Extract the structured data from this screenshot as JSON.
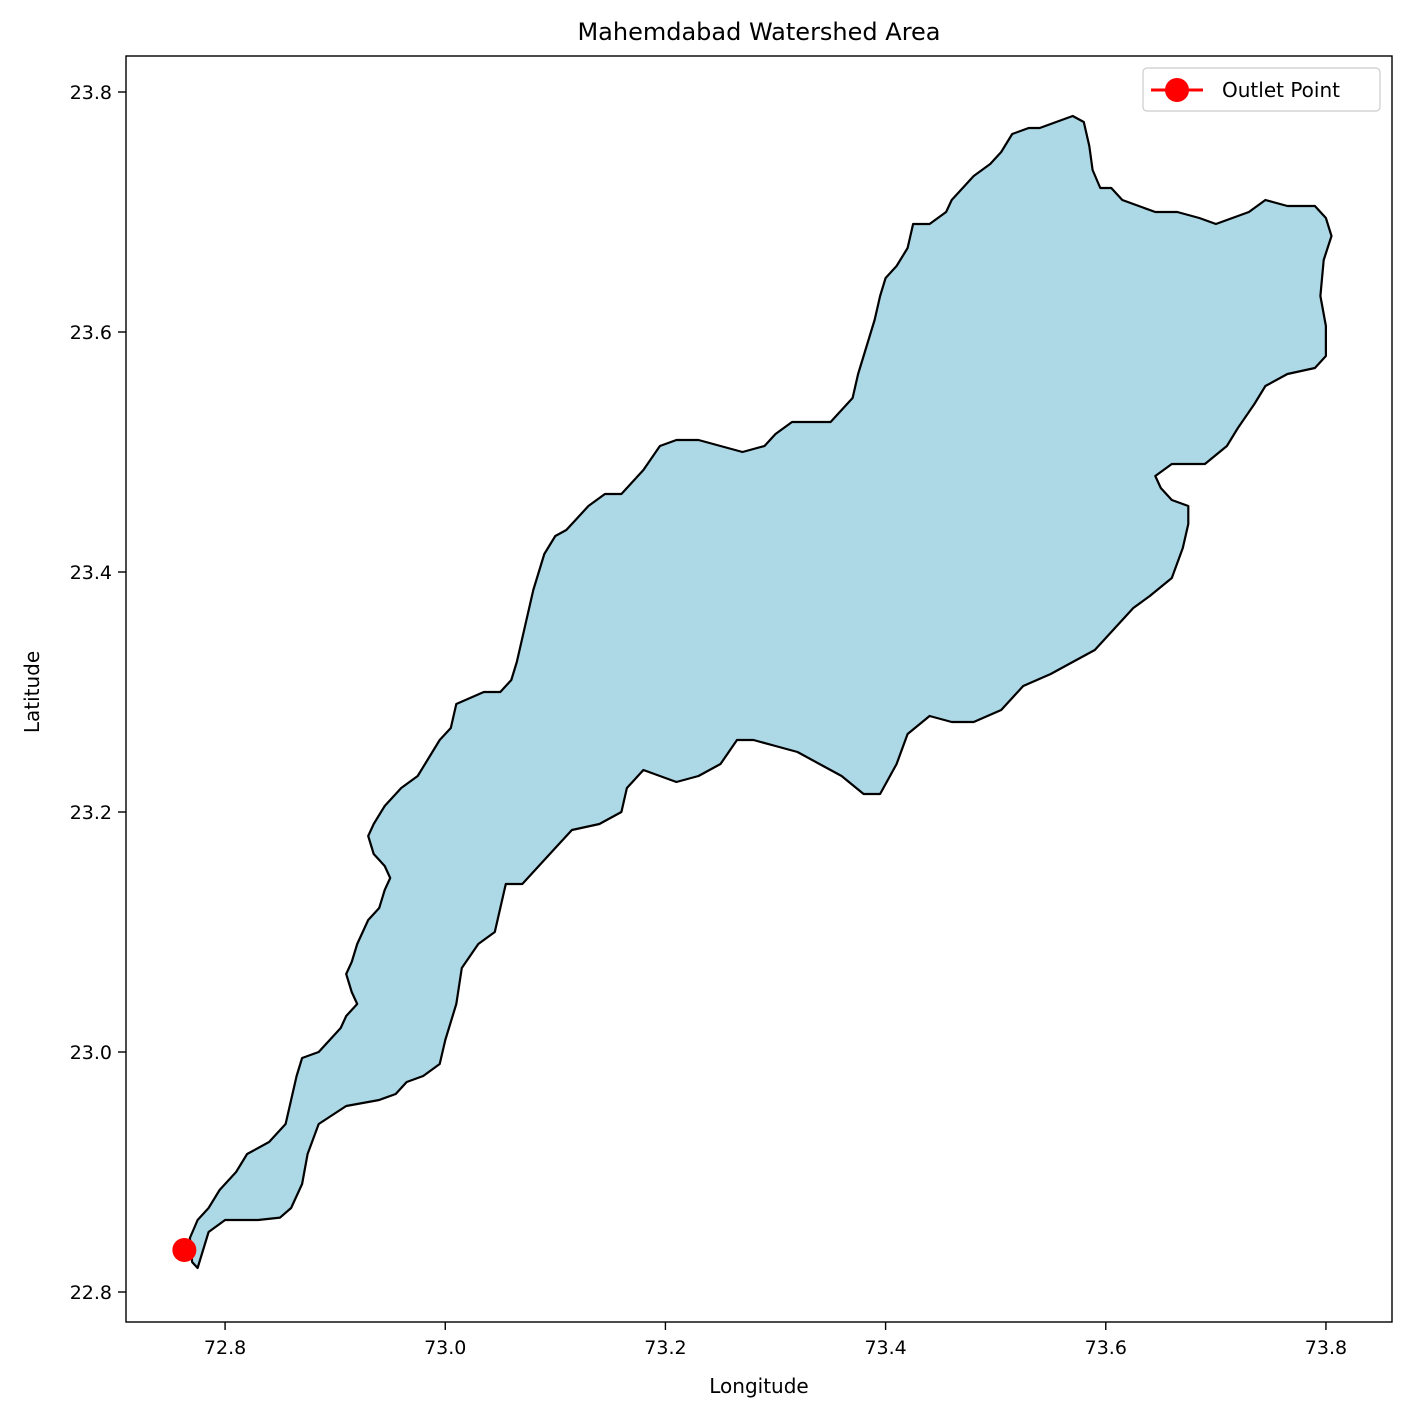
{
  "chart_data": {
    "type": "map",
    "title": "Mahemdabad Watershed Area",
    "xlabel": "Longitude",
    "ylabel": "Latitude",
    "xlim": [
      72.71,
      73.86
    ],
    "ylim": [
      22.775,
      23.83
    ],
    "xticks": [
      72.8,
      73.0,
      73.2,
      73.4,
      73.6,
      73.8
    ],
    "xtick_labels": [
      "72.8",
      "73.0",
      "73.2",
      "73.4",
      "73.6",
      "73.8"
    ],
    "yticks": [
      22.8,
      23.0,
      23.2,
      23.4,
      23.6,
      23.8
    ],
    "ytick_labels": [
      "22.8",
      "23.0",
      "23.2",
      "23.4",
      "23.6",
      "23.8"
    ],
    "grid": false,
    "legend": {
      "position": "top-right",
      "entries": [
        {
          "label": "Outlet Point",
          "color": "#ff0000",
          "marker": "circle"
        }
      ]
    },
    "watershed": {
      "fill": "#add8e6",
      "edge": "#000000",
      "boundary": [
        [
          72.775,
          22.82
        ],
        [
          72.785,
          22.85
        ],
        [
          72.8,
          22.86
        ],
        [
          72.83,
          22.86
        ],
        [
          72.85,
          22.862
        ],
        [
          72.86,
          22.87
        ],
        [
          72.87,
          22.89
        ],
        [
          72.875,
          22.915
        ],
        [
          72.885,
          22.94
        ],
        [
          72.91,
          22.955
        ],
        [
          72.94,
          22.96
        ],
        [
          72.955,
          22.965
        ],
        [
          72.965,
          22.975
        ],
        [
          72.98,
          22.98
        ],
        [
          72.995,
          22.99
        ],
        [
          73.0,
          23.01
        ],
        [
          73.01,
          23.04
        ],
        [
          73.015,
          23.07
        ],
        [
          73.03,
          23.09
        ],
        [
          73.045,
          23.1
        ],
        [
          73.05,
          23.12
        ],
        [
          73.055,
          23.14
        ],
        [
          73.07,
          23.14
        ],
        [
          73.085,
          23.155
        ],
        [
          73.1,
          23.17
        ],
        [
          73.115,
          23.185
        ],
        [
          73.14,
          23.19
        ],
        [
          73.16,
          23.2
        ],
        [
          73.165,
          23.22
        ],
        [
          73.18,
          23.235
        ],
        [
          73.21,
          23.225
        ],
        [
          73.23,
          23.23
        ],
        [
          73.25,
          23.24
        ],
        [
          73.265,
          23.26
        ],
        [
          73.28,
          23.26
        ],
        [
          73.3,
          23.255
        ],
        [
          73.32,
          23.25
        ],
        [
          73.34,
          23.24
        ],
        [
          73.36,
          23.23
        ],
        [
          73.38,
          23.215
        ],
        [
          73.395,
          23.215
        ],
        [
          73.41,
          23.24
        ],
        [
          73.42,
          23.265
        ],
        [
          73.44,
          23.28
        ],
        [
          73.46,
          23.275
        ],
        [
          73.48,
          23.275
        ],
        [
          73.505,
          23.285
        ],
        [
          73.525,
          23.305
        ],
        [
          73.55,
          23.315
        ],
        [
          73.57,
          23.325
        ],
        [
          73.59,
          23.335
        ],
        [
          73.61,
          23.355
        ],
        [
          73.625,
          23.37
        ],
        [
          73.64,
          23.38
        ],
        [
          73.66,
          23.395
        ],
        [
          73.67,
          23.42
        ],
        [
          73.675,
          23.44
        ],
        [
          73.675,
          23.455
        ],
        [
          73.66,
          23.46
        ],
        [
          73.65,
          23.47
        ],
        [
          73.645,
          23.48
        ],
        [
          73.66,
          23.49
        ],
        [
          73.69,
          23.49
        ],
        [
          73.71,
          23.505
        ],
        [
          73.72,
          23.52
        ],
        [
          73.735,
          23.54
        ],
        [
          73.745,
          23.555
        ],
        [
          73.765,
          23.565
        ],
        [
          73.79,
          23.57
        ],
        [
          73.8,
          23.58
        ],
        [
          73.8,
          23.605
        ],
        [
          73.795,
          23.63
        ],
        [
          73.798,
          23.66
        ],
        [
          73.805,
          23.68
        ],
        [
          73.8,
          23.695
        ],
        [
          73.79,
          23.705
        ],
        [
          73.765,
          23.705
        ],
        [
          73.745,
          23.71
        ],
        [
          73.73,
          23.7
        ],
        [
          73.715,
          23.695
        ],
        [
          73.7,
          23.69
        ],
        [
          73.685,
          23.695
        ],
        [
          73.665,
          23.7
        ],
        [
          73.645,
          23.7
        ],
        [
          73.63,
          23.705
        ],
        [
          73.615,
          23.71
        ],
        [
          73.605,
          23.72
        ],
        [
          73.595,
          23.72
        ],
        [
          73.588,
          23.735
        ],
        [
          73.585,
          23.755
        ],
        [
          73.58,
          23.775
        ],
        [
          73.57,
          23.78
        ],
        [
          73.555,
          23.775
        ],
        [
          73.54,
          23.77
        ],
        [
          73.53,
          23.77
        ],
        [
          73.515,
          23.765
        ],
        [
          73.505,
          23.75
        ],
        [
          73.495,
          23.74
        ],
        [
          73.48,
          23.73
        ],
        [
          73.47,
          23.72
        ],
        [
          73.46,
          23.71
        ],
        [
          73.455,
          23.7
        ],
        [
          73.44,
          23.69
        ],
        [
          73.425,
          23.69
        ],
        [
          73.42,
          23.67
        ],
        [
          73.41,
          23.655
        ],
        [
          73.4,
          23.645
        ],
        [
          73.395,
          23.63
        ],
        [
          73.39,
          23.61
        ],
        [
          73.385,
          23.595
        ],
        [
          73.38,
          23.58
        ],
        [
          73.375,
          23.565
        ],
        [
          73.37,
          23.545
        ],
        [
          73.36,
          23.535
        ],
        [
          73.35,
          23.525
        ],
        [
          73.33,
          23.525
        ],
        [
          73.315,
          23.525
        ],
        [
          73.3,
          23.515
        ],
        [
          73.29,
          23.505
        ],
        [
          73.27,
          23.5
        ],
        [
          73.25,
          23.505
        ],
        [
          73.23,
          23.51
        ],
        [
          73.21,
          23.51
        ],
        [
          73.195,
          23.505
        ],
        [
          73.18,
          23.485
        ],
        [
          73.17,
          23.475
        ],
        [
          73.16,
          23.465
        ],
        [
          73.145,
          23.465
        ],
        [
          73.13,
          23.455
        ],
        [
          73.12,
          23.445
        ],
        [
          73.11,
          23.435
        ],
        [
          73.1,
          23.43
        ],
        [
          73.09,
          23.415
        ],
        [
          73.085,
          23.4
        ],
        [
          73.08,
          23.385
        ],
        [
          73.075,
          23.365
        ],
        [
          73.07,
          23.345
        ],
        [
          73.065,
          23.325
        ],
        [
          73.06,
          23.31
        ],
        [
          73.05,
          23.3
        ],
        [
          73.035,
          23.3
        ],
        [
          73.01,
          23.29
        ],
        [
          73.005,
          23.27
        ],
        [
          72.995,
          23.26
        ],
        [
          72.985,
          23.245
        ],
        [
          72.975,
          23.23
        ],
        [
          72.96,
          23.22
        ],
        [
          72.945,
          23.205
        ],
        [
          72.935,
          23.19
        ],
        [
          72.93,
          23.18
        ],
        [
          72.935,
          23.165
        ],
        [
          72.945,
          23.155
        ],
        [
          72.95,
          23.145
        ],
        [
          72.945,
          23.135
        ],
        [
          72.94,
          23.12
        ],
        [
          72.93,
          23.11
        ],
        [
          72.925,
          23.1
        ],
        [
          72.92,
          23.09
        ],
        [
          72.915,
          23.075
        ],
        [
          72.91,
          23.065
        ],
        [
          72.915,
          23.05
        ],
        [
          72.92,
          23.04
        ],
        [
          72.91,
          23.03
        ],
        [
          72.905,
          23.02
        ],
        [
          72.895,
          23.01
        ],
        [
          72.885,
          23.0
        ],
        [
          72.87,
          22.995
        ],
        [
          72.865,
          22.98
        ],
        [
          72.86,
          22.96
        ],
        [
          72.855,
          22.94
        ],
        [
          72.84,
          22.925
        ],
        [
          72.82,
          22.915
        ],
        [
          72.81,
          22.9
        ],
        [
          72.795,
          22.885
        ],
        [
          72.785,
          22.87
        ],
        [
          72.775,
          22.86
        ],
        [
          72.768,
          22.845
        ],
        [
          72.77,
          22.825
        ]
      ]
    },
    "outlet": {
      "lon": 72.763,
      "lat": 22.835,
      "color": "#ff0000",
      "label": "Outlet Point"
    }
  }
}
